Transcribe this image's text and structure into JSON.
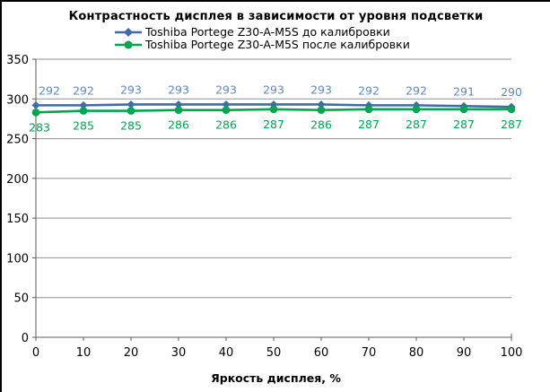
{
  "chart_data": {
    "type": "line",
    "title": "Контрастность дисплея в зависимости от уровня подсветки",
    "xlabel": "Яркость дисплея, %",
    "ylabel": "",
    "x": [
      0,
      10,
      20,
      30,
      40,
      50,
      60,
      70,
      80,
      90,
      100
    ],
    "ylim": [
      0,
      350
    ],
    "yticks": [
      0,
      50,
      100,
      150,
      200,
      250,
      300,
      350
    ],
    "grid": "horizontal",
    "legend_position": "top",
    "series": [
      {
        "name": "Toshiba Portege Z30-A-M5S до калибровки",
        "marker": "diamond",
        "color": "#3f6ca8",
        "label_color": "#6288c0",
        "labels_position": "above",
        "values": [
          292,
          292,
          293,
          293,
          293,
          293,
          293,
          292,
          292,
          291,
          290
        ]
      },
      {
        "name": "Toshiba Portege Z30-A-M5S после калибровки",
        "marker": "circle",
        "color": "#00a550",
        "label_color": "#00a550",
        "labels_position": "below",
        "values": [
          283,
          285,
          285,
          286,
          286,
          287,
          286,
          287,
          287,
          287,
          287
        ]
      }
    ],
    "colors": {
      "gridline": "#909090",
      "axis": "#595959",
      "text": "#000000",
      "border": "#000000",
      "background": "#ffffff"
    }
  }
}
